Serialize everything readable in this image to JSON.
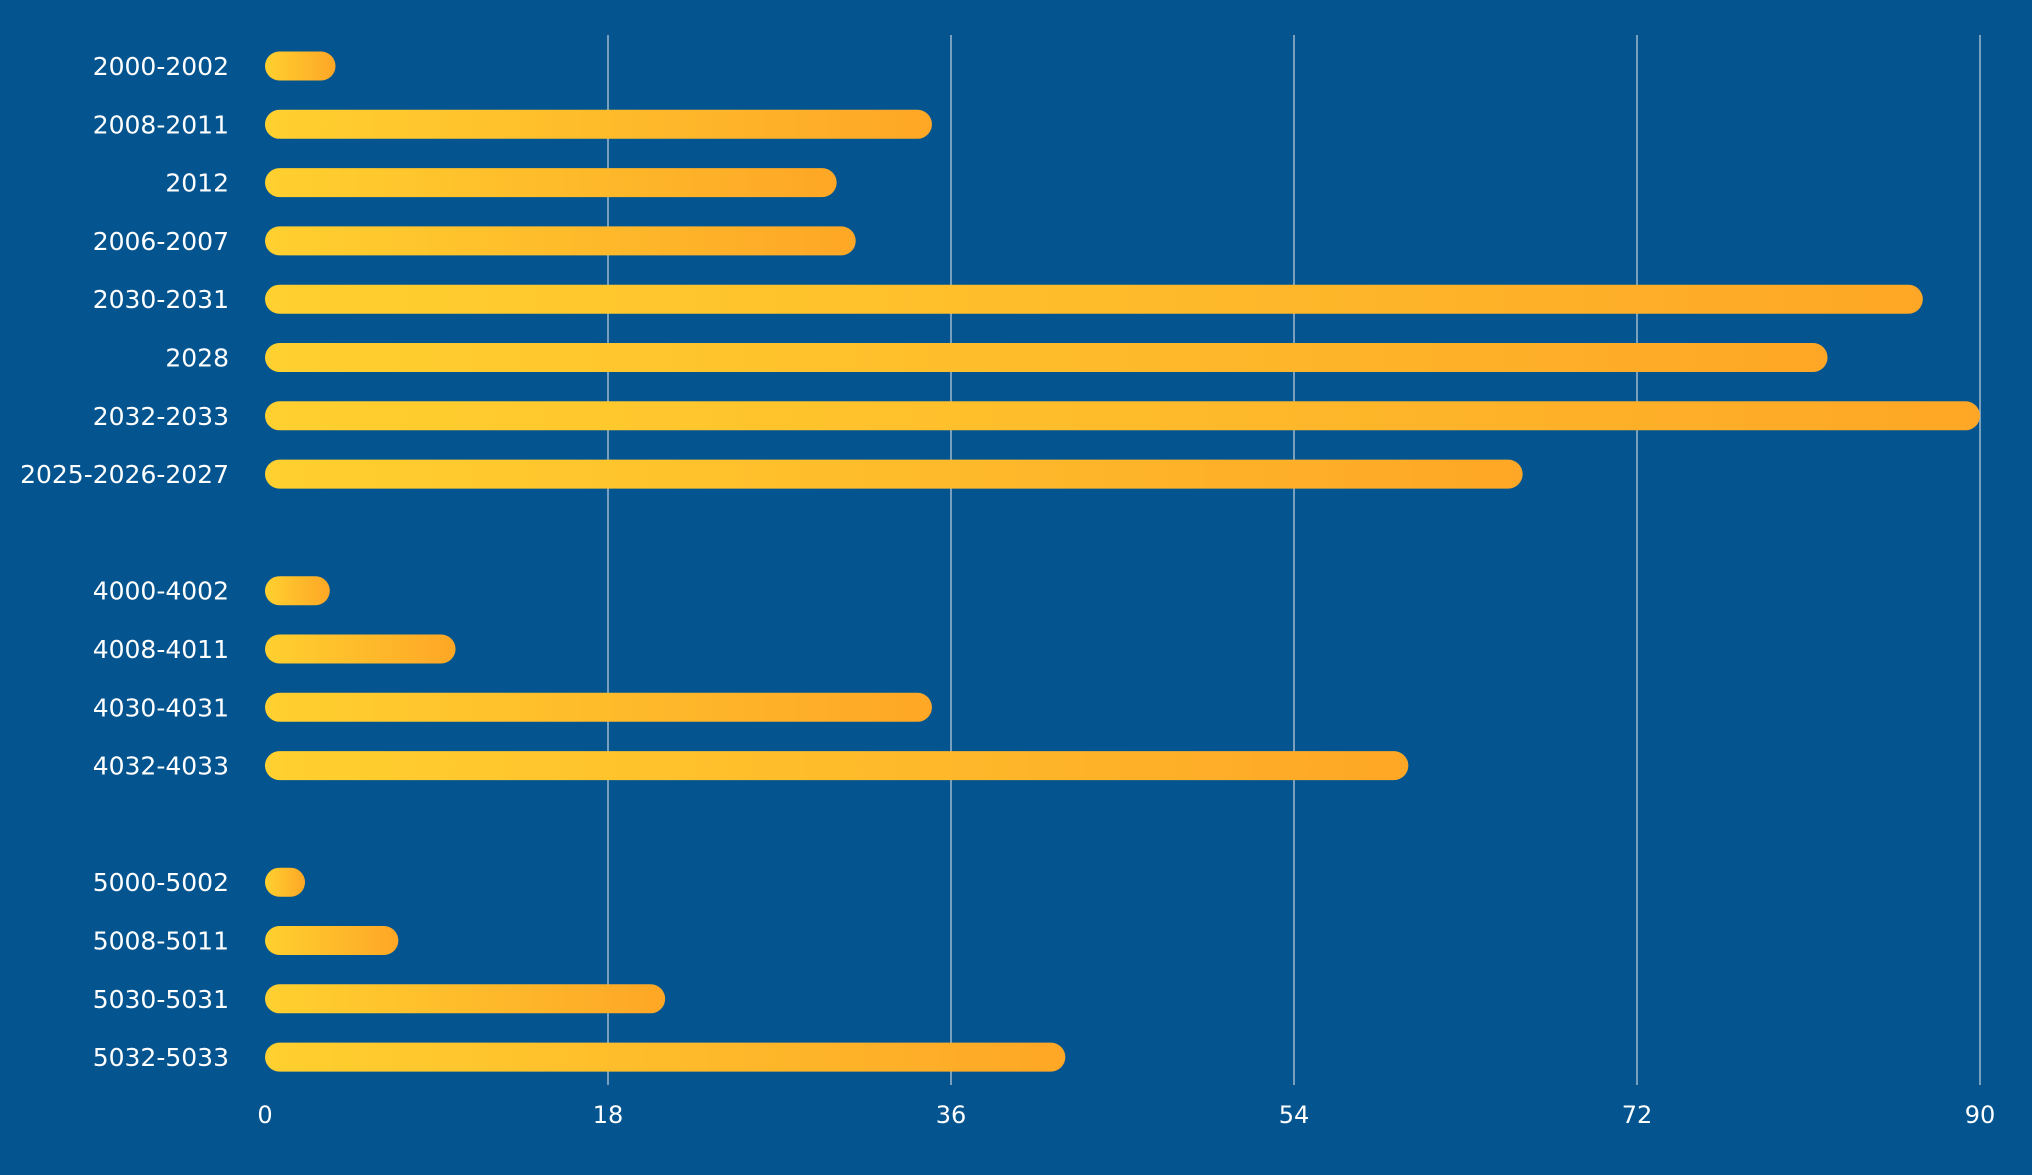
{
  "chart_data": {
    "type": "bar",
    "orientation": "horizontal",
    "title": "",
    "xlabel": "",
    "ylabel": "",
    "xlim": [
      0,
      90
    ],
    "xticks": [
      "0",
      "18",
      "36",
      "54",
      "72",
      "90"
    ],
    "grid": true,
    "groups": [
      {
        "categories": [
          "2000-2002",
          "2008-2011",
          "2012",
          "2006-2007",
          "2030-2031",
          "2028",
          "2032-2033",
          "2025-2026-2027"
        ],
        "values": [
          3.7,
          35,
          30,
          31,
          87,
          82,
          90,
          66
        ]
      },
      {
        "categories": [
          "4000-4002",
          "4008-4011",
          "4030-4031",
          "4032-4033"
        ],
        "values": [
          3.4,
          10,
          35,
          60
        ]
      },
      {
        "categories": [
          "5000-5002",
          "5008-5011",
          "5030-5031",
          "5032-5033"
        ],
        "values": [
          2.1,
          7,
          21,
          42
        ]
      }
    ],
    "colors": {
      "background": "#03548f",
      "bar_start": "#ffd02f",
      "bar_end": "#fea726",
      "grid": "#b8c8d8",
      "text": "#ffffff"
    }
  }
}
